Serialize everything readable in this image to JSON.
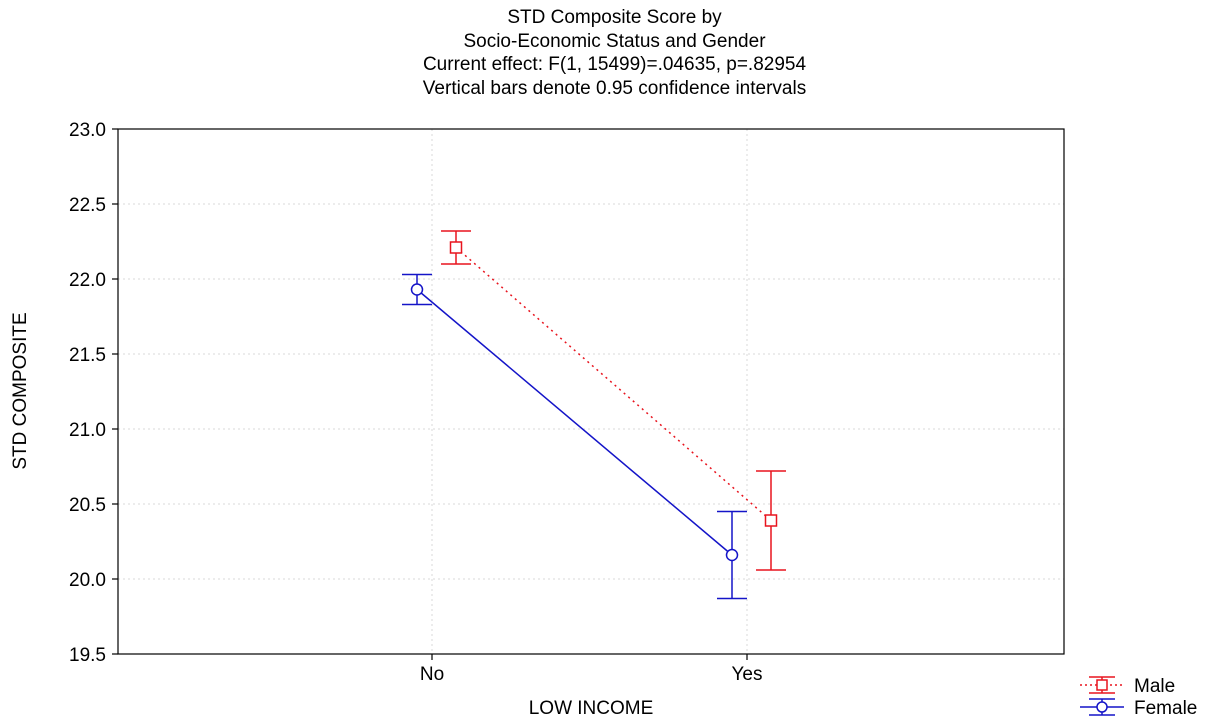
{
  "chart_data": {
    "type": "line",
    "title_lines": [
      "STD Composite Score by",
      "Socio-Economic Status and Gender",
      "Current effect: F(1, 15499)=.04635, p=.82954",
      "Vertical bars denote 0.95 confidence intervals"
    ],
    "xlabel": "LOW INCOME",
    "ylabel": "STD COMPOSITE",
    "categories": [
      "No",
      "Yes"
    ],
    "ylim": [
      19.5,
      23.0
    ],
    "yticks": [
      "19.5",
      "20.0",
      "20.5",
      "21.0",
      "21.5",
      "22.0",
      "22.5",
      "23.0"
    ],
    "grid": true,
    "legend_position": "bottom-right",
    "series": [
      {
        "name": "Male",
        "color": "#e8141e",
        "marker": "square",
        "line_style": "dotted",
        "values": [
          22.21,
          20.39
        ],
        "ci_lower": [
          22.1,
          20.06
        ],
        "ci_upper": [
          22.32,
          20.72
        ]
      },
      {
        "name": "Female",
        "color": "#1414c8",
        "marker": "circle",
        "line_style": "solid",
        "values": [
          21.93,
          20.16
        ],
        "ci_lower": [
          21.83,
          19.87
        ],
        "ci_upper": [
          22.03,
          20.45
        ]
      }
    ]
  }
}
